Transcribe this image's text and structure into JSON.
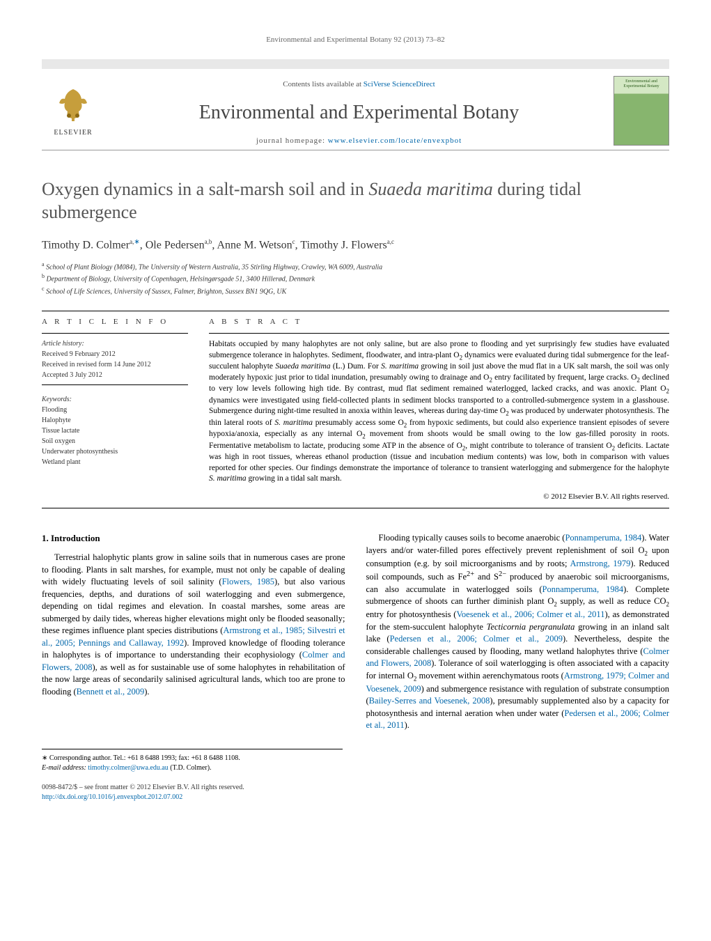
{
  "running_header": "Environmental and Experimental Botany 92 (2013) 73–82",
  "masthead": {
    "contents_prefix": "Contents lists available at ",
    "contents_link": "SciVerse ScienceDirect",
    "journal": "Environmental and Experimental Botany",
    "homepage_prefix": "journal homepage: ",
    "homepage_url": "www.elsevier.com/locate/envexpbot",
    "publisher": "ELSEVIER",
    "cover_label": "Environmental and Experimental Botany"
  },
  "title_html": "Oxygen dynamics in a salt-marsh soil and in <em>Suaeda maritima</em> during tidal submergence",
  "authors_html": "Timothy D. Colmer<sup class=\"affil\">a,</sup><sup class=\"corr\">∗</sup>, Ole Pedersen<sup class=\"affil\">a,b</sup>, Anne M. Wetson<sup class=\"affil\">c</sup>, Timothy J. Flowers<sup class=\"affil\">a,c</sup>",
  "affiliations": [
    "a School of Plant Biology (M084), The University of Western Australia, 35 Stirling Highway, Crawley, WA 6009, Australia",
    "b Department of Biology, University of Copenhagen, Helsingørsgade 51, 3400 Hillerød, Denmark",
    "c School of Life Sciences, University of Sussex, Falmer, Brighton, Sussex BN1 9QG, UK"
  ],
  "info": {
    "heading": "a r t i c l e   i n f o",
    "history_label": "Article history:",
    "history": [
      "Received 9 February 2012",
      "Received in revised form 14 June 2012",
      "Accepted 3 July 2012"
    ],
    "keywords_label": "Keywords:",
    "keywords": [
      "Flooding",
      "Halophyte",
      "Tissue lactate",
      "Soil oxygen",
      "Underwater photosynthesis",
      "Wetland plant"
    ]
  },
  "abstract": {
    "heading": "a b s t r a c t",
    "text_html": "Habitats occupied by many halophytes are not only saline, but are also prone to flooding and yet surprisingly few studies have evaluated submergence tolerance in halophytes. Sediment, floodwater, and intra-plant O<sub>2</sub> dynamics were evaluated during tidal submergence for the leaf-succulent halophyte <em>Suaeda maritima</em> (L.) Dum. For <em>S. maritima</em> growing in soil just above the mud flat in a UK salt marsh, the soil was only moderately hypoxic just prior to tidal inundation, presumably owing to drainage and O<sub>2</sub> entry facilitated by frequent, large cracks. O<sub>2</sub> declined to very low levels following high tide. By contrast, mud flat sediment remained waterlogged, lacked cracks, and was anoxic. Plant O<sub>2</sub> dynamics were investigated using field-collected plants in sediment blocks transported to a controlled-submergence system in a glasshouse. Submergence during night-time resulted in anoxia within leaves, whereas during day-time O<sub>2</sub> was produced by underwater photosynthesis. The thin lateral roots of <em>S. maritima</em> presumably access some O<sub>2</sub> from hypoxic sediments, but could also experience transient episodes of severe hypoxia/anoxia, especially as any internal O<sub>2</sub> movement from shoots would be small owing to the low gas-filled porosity in roots. Fermentative metabolism to lactate, producing some ATP in the absence of O<sub>2</sub>, might contribute to tolerance of transient O<sub>2</sub> deficits. Lactate was high in root tissues, whereas ethanol production (tissue and incubation medium contents) was low, both in comparison with values reported for other species. Our findings demonstrate the importance of tolerance to transient waterlogging and submergence for the halophyte <em>S. maritima</em> growing in a tidal salt marsh.",
    "copyright": "© 2012 Elsevier B.V. All rights reserved."
  },
  "body": {
    "section_heading": "1.  Introduction",
    "left_html": "Terrestrial halophytic plants grow in saline soils that in numerous cases are prone to flooding. Plants in salt marshes, for example, must not only be capable of dealing with widely fluctuating levels of soil salinity (<span class=\"cite\">Flowers, 1985</span>), but also various frequencies, depths, and durations of soil waterlogging and even submergence, depending on tidal regimes and elevation. In coastal marshes, some areas are submerged by daily tides, whereas higher elevations might only be flooded seasonally; these regimes influence plant species distributions (<span class=\"cite\">Armstrong et al., 1985; Silvestri et al., 2005; Pennings and Callaway, 1992</span>). Improved knowledge of flooding tolerance in halophytes is of importance to understanding their ecophysiology (<span class=\"cite\">Colmer and Flowers, 2008</span>), as well as for sustainable use of some halophytes in rehabilitation of the now large areas of secondarily salinised agricultural lands, which too are prone to flooding (<span class=\"cite\">Bennett et al., 2009</span>).",
    "right_html": "Flooding typically causes soils to become anaerobic (<span class=\"cite\">Ponnamperuma, 1984</span>). Water layers and/or water-filled pores effectively prevent replenishment of soil O<sub>2</sub> upon consumption (e.g. by soil microorganisms and by roots; <span class=\"cite\">Armstrong, 1979</span>). Reduced soil compounds, such as Fe<sup>2+</sup> and S<sup>2−</sup> produced by anaerobic soil microorganisms, can also accumulate in waterlogged soils (<span class=\"cite\">Ponnamperuma, 1984</span>). Complete submergence of shoots can further diminish plant O<sub>2</sub> supply, as well as reduce CO<sub>2</sub> entry for photosynthesis (<span class=\"cite\">Voesenek et al., 2006; Colmer et al., 2011</span>), as demonstrated for the stem-succulent halophyte <em>Tecticornia pergranulata</em> growing in an inland salt lake (<span class=\"cite\">Pedersen et al., 2006; Colmer et al., 2009</span>). Nevertheless, despite the considerable challenges caused by flooding, many wetland halophytes thrive (<span class=\"cite\">Colmer and Flowers, 2008</span>). Tolerance of soil waterlogging is often associated with a capacity for internal O<sub>2</sub> movement within aerenchymatous roots (<span class=\"cite\">Armstrong, 1979; Colmer and Voesenek, 2009</span>) and submergence resistance with regulation of substrate consumption (<span class=\"cite\">Bailey-Serres and Voesenek, 2008</span>), presumably supplemented also by a capacity for photosynthesis and internal aeration when under water (<span class=\"cite\">Pedersen et al., 2006; Colmer et al., 2011</span>)."
  },
  "footnote": {
    "corr_html": "∗ Corresponding author. Tel.: +61 8 6488 1993; fax: +61 8 6488 1108.",
    "email_label": "E-mail address: ",
    "email": "timothy.colmer@uwa.edu.au",
    "email_suffix": " (T.D. Colmer)."
  },
  "footer": {
    "line1": "0098-8472/$ – see front matter © 2012 Elsevier B.V. All rights reserved.",
    "doi": "http://dx.doi.org/10.1016/j.envexpbot.2012.07.002"
  },
  "colors": {
    "link": "#0066aa",
    "topbar": "#e8e8e8",
    "text_muted": "#555555",
    "heading_gray": "#555555"
  }
}
